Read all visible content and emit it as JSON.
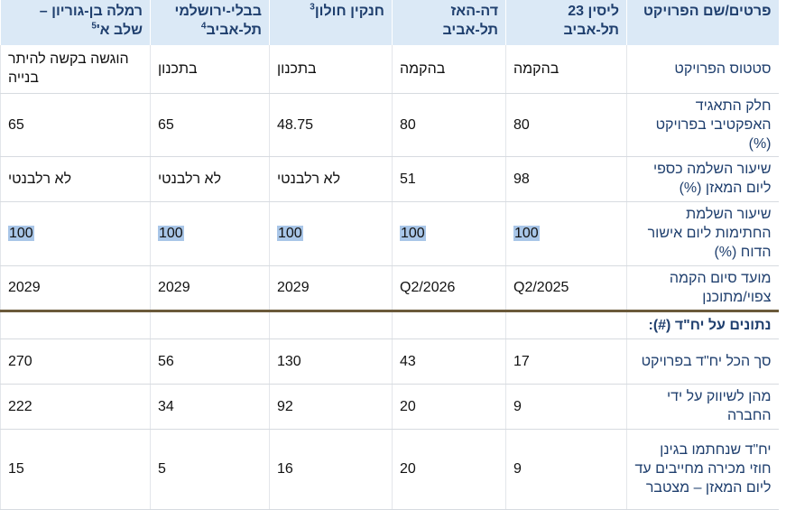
{
  "headers": [
    {
      "text": "פרטים/שם הפרויקט",
      "sup": ""
    },
    {
      "text": "ליסין 23 תל-אביב",
      "sup": ""
    },
    {
      "text": "דה-האז תל-אביב",
      "sup": ""
    },
    {
      "text": "חנקין חולון",
      "sup": "3"
    },
    {
      "text": "בבלי-ירושלמי תל-אביב",
      "sup": "4"
    },
    {
      "text": "רמלה בן-גוריון – שלב א'",
      "sup": "5"
    }
  ],
  "rows": [
    {
      "label": "סטטוס הפרויקט",
      "values": [
        "בהקמה",
        "בהקמה",
        "בתכנון",
        "בתכנון",
        "הוגשה בקשה להיתר בנייה"
      ]
    },
    {
      "label": "חלק התאגיד האפקטיבי בפרויקט (%)",
      "values": [
        "80",
        "80",
        "48.75",
        "65",
        "65"
      ]
    },
    {
      "label": "שיעור השלמה כספי ליום המאזן (%)",
      "values": [
        "98",
        "51",
        "לא רלבנטי",
        "לא רלבנטי",
        "לא רלבנטי"
      ]
    },
    {
      "label": "שיעור השלמת החתימות ליום אישור הדוח (%)",
      "values": [
        "100",
        "100",
        "100",
        "100",
        "100"
      ],
      "highlight": true
    },
    {
      "label": "מועד סיום הקמה צפוי/מתוכנן",
      "values": [
        "Q2/2025",
        "Q2/2026",
        "2029",
        "2029",
        "2029"
      ],
      "separator": true
    }
  ],
  "section_title": "נתונים על יח\"ד (#):",
  "units_rows": [
    {
      "label": "סך הכל יח\"ד בפרויקט",
      "values": [
        "17",
        "43",
        "130",
        "56",
        "270"
      ]
    },
    {
      "label": "מהן לשיווק על ידי החברה",
      "values": [
        "9",
        "20",
        "92",
        "34",
        "222"
      ]
    },
    {
      "label": "יח\"ד שנחתמו בגינן חוזי מכירה מחייבים עד ליום המאזן – מצטבר",
      "values": [
        "9",
        "20",
        "16",
        "5",
        "15"
      ]
    }
  ]
}
